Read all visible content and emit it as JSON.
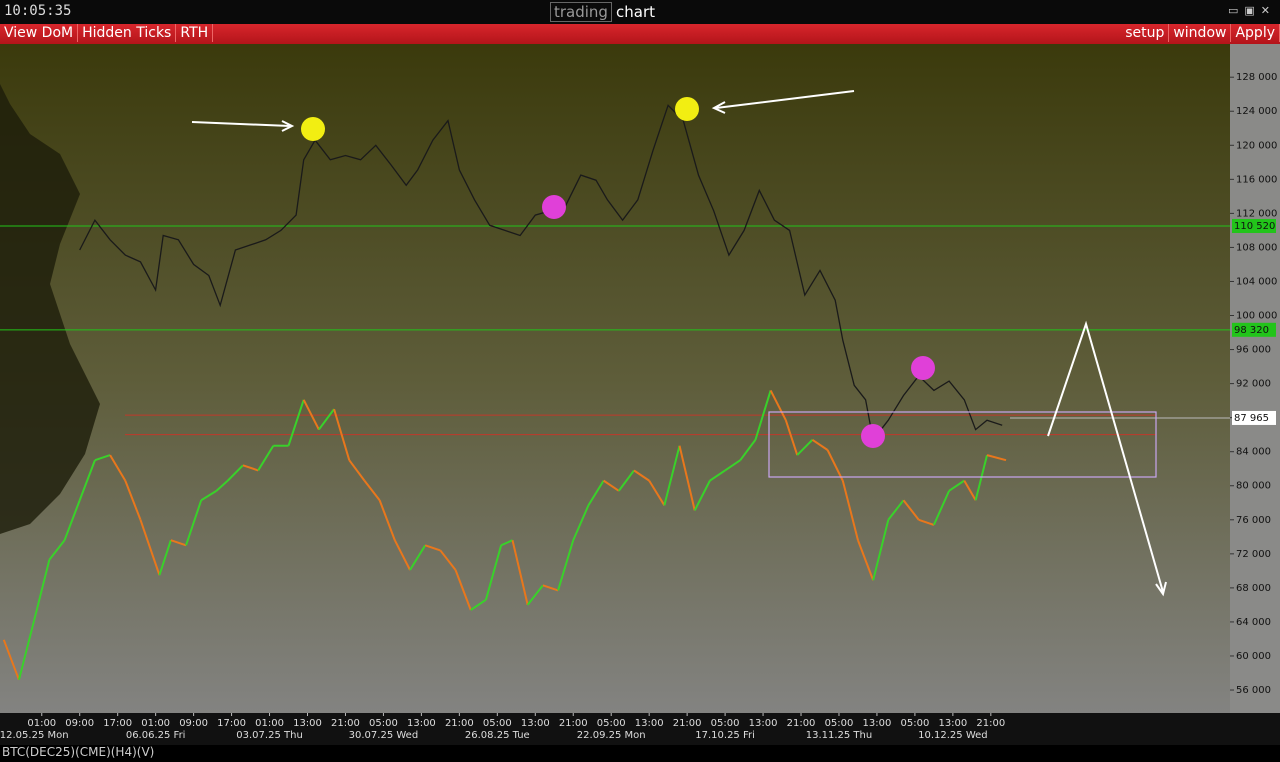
{
  "header": {
    "time": "10:05:35",
    "title_a": "trading",
    "title_b": "chart"
  },
  "menu_left": [
    "View DoM",
    "Hidden Ticks",
    "RTH"
  ],
  "menu_right": [
    "setup",
    "window",
    "Apply"
  ],
  "footer": "BTC(DEC25)(CME)(H4)(V)",
  "chart_data": {
    "type": "line",
    "xlim": [
      -1.1,
      31.3
    ],
    "ylim": [
      53300,
      131900
    ],
    "yticks": [
      {
        "value": 56000,
        "label": "56 000"
      },
      {
        "value": 60000,
        "label": "60 000"
      },
      {
        "value": 64000,
        "label": "64 000"
      },
      {
        "value": 68000,
        "label": "68 000"
      },
      {
        "value": 72000,
        "label": "72 000"
      },
      {
        "value": 76000,
        "label": "76 000"
      },
      {
        "value": 80000,
        "label": "80 000"
      },
      {
        "value": 84000,
        "label": "84 000"
      },
      {
        "value": 88000,
        "label": "88 000"
      },
      {
        "value": 92000,
        "label": "92 000"
      },
      {
        "value": 96000,
        "label": "96 000"
      },
      {
        "value": 100000,
        "label": "100 000"
      },
      {
        "value": 104000,
        "label": "104 000"
      },
      {
        "value": 108000,
        "label": "108 000"
      },
      {
        "value": 112000,
        "label": "112 000"
      },
      {
        "value": 116000,
        "label": "116 000"
      },
      {
        "value": 120000,
        "label": "120 000"
      },
      {
        "value": 124000,
        "label": "124 000"
      },
      {
        "value": 128000,
        "label": "128 000"
      }
    ],
    "xticks": [
      {
        "value": 0,
        "label": "01:00"
      },
      {
        "value": 1,
        "label": "09:00"
      },
      {
        "value": 2,
        "label": "17:00"
      },
      {
        "value": 3,
        "label": "01:00"
      },
      {
        "value": 4,
        "label": "09:00"
      },
      {
        "value": 5,
        "label": "17:00"
      },
      {
        "value": 6,
        "label": "01:00"
      },
      {
        "value": 7,
        "label": "13:00"
      },
      {
        "value": 8,
        "label": "21:00"
      },
      {
        "value": 9,
        "label": "05:00"
      },
      {
        "value": 10,
        "label": "13:00"
      },
      {
        "value": 11,
        "label": "21:00"
      },
      {
        "value": 12,
        "label": "05:00"
      },
      {
        "value": 13,
        "label": "13:00"
      },
      {
        "value": 14,
        "label": "21:00"
      },
      {
        "value": 15,
        "label": "05:00"
      },
      {
        "value": 16,
        "label": "13:00"
      },
      {
        "value": 17,
        "label": "21:00"
      },
      {
        "value": 18,
        "label": "05:00"
      },
      {
        "value": 19,
        "label": "13:00"
      },
      {
        "value": 20,
        "label": "21:00"
      },
      {
        "value": 21,
        "label": "05:00"
      },
      {
        "value": 22,
        "label": "13:00"
      },
      {
        "value": 23,
        "label": "05:00"
      },
      {
        "value": 24,
        "label": "13:00"
      },
      {
        "value": 25,
        "label": "21:00"
      }
    ],
    "date_labels": [
      {
        "value": -0.2,
        "label": "12.05.25 Mon"
      },
      {
        "value": 3,
        "label": "06.06.25 Fri"
      },
      {
        "value": 6,
        "label": "03.07.25 Thu"
      },
      {
        "value": 9,
        "label": "30.07.25 Wed"
      },
      {
        "value": 12,
        "label": "26.08.25 Tue"
      },
      {
        "value": 15,
        "label": "22.09.25 Mon"
      },
      {
        "value": 18,
        "label": "17.10.25 Fri"
      },
      {
        "value": 21,
        "label": "13.11.25 Thu"
      },
      {
        "value": 24,
        "label": "10.12.25 Wed"
      }
    ],
    "price_labels": [
      {
        "value": 110520,
        "label": "110 520",
        "color": "#22c41a"
      },
      {
        "value": 98320,
        "label": "98 320",
        "color": "#22c41a"
      },
      {
        "value": 87965,
        "label": "87 965",
        "color": "#ffffff"
      }
    ],
    "levels": [
      {
        "value": 88300,
        "color": "#c0392b"
      },
      {
        "value": 86000,
        "color": "#c0392b"
      }
    ],
    "series": [
      {
        "color": "#1a1a1a",
        "x": [
          1.0,
          1.4,
          1.8,
          2.2,
          2.6,
          3.0,
          3.2,
          3.6,
          4.0,
          4.4,
          4.7,
          5.1,
          5.5,
          5.9,
          6.3,
          6.7,
          6.9,
          7.2,
          7.6,
          8.0,
          8.4,
          8.8,
          9.2,
          9.6,
          9.9,
          10.3,
          10.7,
          11.0,
          11.4,
          11.8,
          12.2,
          12.6,
          13.0,
          13.4,
          13.8,
          14.2,
          14.6,
          14.9,
          15.3,
          15.7,
          16.1,
          16.5,
          16.9,
          17.3,
          17.7,
          18.1,
          18.5,
          18.9,
          19.3,
          19.7,
          20.1,
          20.5,
          20.9,
          21.1,
          21.4,
          21.7,
          21.9,
          22.3,
          22.7,
          23.1,
          23.5,
          23.9,
          24.3,
          24.6,
          24.9,
          25.3
        ],
        "values": [
          107700,
          111200,
          108900,
          107100,
          106300,
          103000,
          109400,
          108900,
          106000,
          104700,
          101200,
          107700,
          108300,
          108900,
          110000,
          111800,
          118300,
          120600,
          118300,
          118800,
          118300,
          120000,
          117700,
          115300,
          117100,
          120600,
          122900,
          117100,
          113600,
          110600,
          110000,
          109400,
          111800,
          112300,
          112900,
          116500,
          115900,
          113600,
          111200,
          113600,
          119400,
          124700,
          122900,
          116500,
          112300,
          107100,
          110000,
          114700,
          111200,
          110000,
          102400,
          105300,
          101800,
          97100,
          91800,
          90100,
          85400,
          87700,
          90600,
          92900,
          91200,
          92300,
          90100,
          86600,
          87700,
          87100
        ]
      },
      {
        "color": "#39d12a",
        "down_color": "#e8771c",
        "x": [
          -1.0,
          -0.6,
          -0.2,
          0.2,
          0.6,
          1.0,
          1.4,
          1.8,
          2.2,
          2.6,
          3.1,
          3.4,
          3.8,
          4.2,
          4.6,
          4.9,
          5.3,
          5.7,
          6.1,
          6.5,
          6.9,
          7.3,
          7.7,
          8.1,
          8.5,
          8.9,
          9.3,
          9.7,
          10.1,
          10.5,
          10.9,
          11.3,
          11.7,
          12.1,
          12.4,
          12.8,
          13.2,
          13.6,
          14.0,
          14.4,
          14.8,
          15.2,
          15.6,
          16.0,
          16.4,
          16.8,
          17.2,
          17.6,
          18.0,
          18.4,
          18.8,
          19.2,
          19.6,
          19.9,
          20.3,
          20.7,
          21.1,
          21.5,
          21.9,
          22.3,
          22.7,
          23.1,
          23.5,
          23.9,
          24.3,
          24.6,
          24.9,
          25.4
        ],
        "values": [
          61900,
          57200,
          64200,
          71300,
          73600,
          78300,
          83000,
          83600,
          80600,
          76000,
          69500,
          73600,
          73000,
          78300,
          79400,
          80600,
          82400,
          81800,
          84700,
          84700,
          90100,
          86600,
          89000,
          83000,
          80600,
          78300,
          73600,
          70100,
          73000,
          72400,
          70100,
          65400,
          66600,
          73000,
          73600,
          66000,
          68300,
          67700,
          73600,
          77700,
          80600,
          79400,
          81800,
          80600,
          77700,
          84700,
          77100,
          80600,
          81800,
          83000,
          85400,
          91200,
          87700,
          83600,
          85400,
          84200,
          80600,
          73600,
          68900,
          76000,
          78300,
          76000,
          75400,
          79400,
          80600,
          78300,
          83600,
          83000
        ]
      }
    ]
  }
}
